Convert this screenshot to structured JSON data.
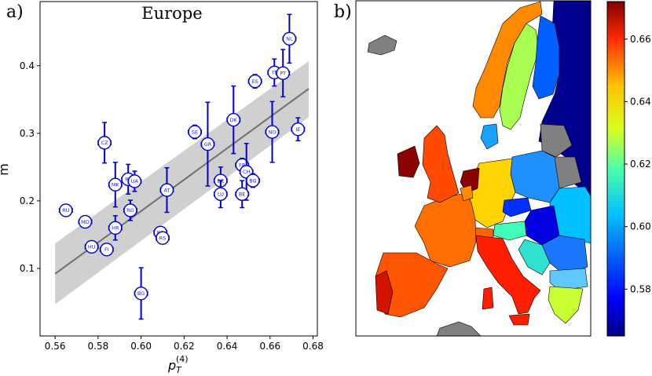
{
  "panel_a_label": "a)",
  "panel_b_label": "b)",
  "chart_data": [
    {
      "type": "scatter",
      "title": "Europe",
      "xlabel": "p",
      "xlabel_sub": "T",
      "xlabel_sup": "(4)",
      "ylabel": "m",
      "xlim": [
        0.553,
        0.682
      ],
      "ylim": [
        0.0,
        0.495
      ],
      "xticks": [
        "0.56",
        "0.58",
        "0.60",
        "0.62",
        "0.64",
        "0.66",
        "0.68"
      ],
      "yticks": [
        "0.1",
        "0.2",
        "0.3",
        "0.4"
      ],
      "grid": false,
      "marker_color": "#0000cc",
      "fit": {
        "x0": 0.56,
        "y0": 0.092,
        "x1": 0.678,
        "y1": 0.366,
        "band_lo": [
          0.047,
          0.324
        ],
        "band_hi": [
          0.137,
          0.407
        ],
        "line_color": "#6e6e6e",
        "band_color": "#c8c8c8"
      },
      "points": [
        {
          "label": "NL",
          "x": 0.669,
          "y": 0.44,
          "yerr": 0.036,
          "xerr": 0.003
        },
        {
          "label": "IT",
          "x": 0.662,
          "y": 0.39,
          "yerr": 0.02,
          "xerr": 0.003
        },
        {
          "label": "PT",
          "x": 0.666,
          "y": 0.389,
          "yerr": 0.035,
          "xerr": 0.003
        },
        {
          "label": "ES",
          "x": 0.653,
          "y": 0.377,
          "yerr": 0.01,
          "xerr": 0.003
        },
        {
          "label": "DK",
          "x": 0.643,
          "y": 0.32,
          "yerr": 0.05,
          "xerr": 0.003
        },
        {
          "label": "IE",
          "x": 0.673,
          "y": 0.306,
          "yerr": 0.017,
          "xerr": 0.003
        },
        {
          "label": "NO",
          "x": 0.661,
          "y": 0.302,
          "yerr": 0.045,
          "xerr": 0.003
        },
        {
          "label": "SE",
          "x": 0.625,
          "y": 0.302,
          "yerr": 0.01,
          "xerr": 0.003
        },
        {
          "label": "GR",
          "x": 0.631,
          "y": 0.284,
          "yerr": 0.062,
          "xerr": 0.003
        },
        {
          "label": "CZ",
          "x": 0.583,
          "y": 0.286,
          "yerr": 0.03,
          "xerr": 0.003
        },
        {
          "label": "FR",
          "x": 0.647,
          "y": 0.253,
          "yerr": 0.01,
          "xerr": 0.003
        },
        {
          "label": "CH",
          "x": 0.649,
          "y": 0.243,
          "yerr": 0.042,
          "xerr": 0.003
        },
        {
          "label": "BG",
          "x": 0.652,
          "y": 0.23,
          "yerr": 0.01,
          "xerr": 0.003
        },
        {
          "label": "DE",
          "x": 0.637,
          "y": 0.23,
          "yerr": 0.02,
          "xerr": 0.003
        },
        {
          "label": "PK",
          "x": 0.594,
          "y": 0.232,
          "yerr": 0.022,
          "xerr": 0.003
        },
        {
          "label": "UA",
          "x": 0.597,
          "y": 0.229,
          "yerr": 0.015,
          "xerr": 0.003
        },
        {
          "label": "MK",
          "x": 0.588,
          "y": 0.224,
          "yerr": 0.033,
          "xerr": 0.003
        },
        {
          "label": "AT",
          "x": 0.612,
          "y": 0.216,
          "yerr": 0.033,
          "xerr": 0.003
        },
        {
          "label": "LU",
          "x": 0.637,
          "y": 0.21,
          "yerr": 0.02,
          "xerr": 0.003
        },
        {
          "label": "BE",
          "x": 0.647,
          "y": 0.21,
          "yerr": 0.02,
          "xerr": 0.003
        },
        {
          "label": "RU",
          "x": 0.565,
          "y": 0.186,
          "yerr": 0.0,
          "xerr": 0.003
        },
        {
          "label": "RO",
          "x": 0.595,
          "y": 0.186,
          "yerr": 0.015,
          "xerr": 0.003
        },
        {
          "label": "MD",
          "x": 0.574,
          "y": 0.169,
          "yerr": 0.0,
          "xerr": 0.003
        },
        {
          "label": "HR",
          "x": 0.588,
          "y": 0.16,
          "yerr": 0.018,
          "xerr": 0.003
        },
        {
          "label": "BA",
          "x": 0.609,
          "y": 0.153,
          "yerr": 0.0,
          "xerr": 0.003
        },
        {
          "label": "RS",
          "x": 0.61,
          "y": 0.145,
          "yerr": 0.0,
          "xerr": 0.003
        },
        {
          "label": "HU",
          "x": 0.577,
          "y": 0.132,
          "yerr": 0.0,
          "xerr": 0.003
        },
        {
          "label": "FI",
          "x": 0.584,
          "y": 0.128,
          "yerr": 0.0,
          "xerr": 0.003
        },
        {
          "label": "BG",
          "x": 0.6,
          "y": 0.063,
          "yerr": 0.038,
          "xerr": 0.003
        }
      ]
    },
    {
      "type": "heatmap",
      "subtype": "choropleth-map",
      "colorbar": {
        "colormap": "jet",
        "range": [
          0.565,
          0.672
        ],
        "ticks": [
          "0.58",
          "0.60",
          "0.62",
          "0.64",
          "0.66"
        ]
      },
      "no_data_color": "#808080",
      "sea_color": "#ffffff"
    }
  ]
}
